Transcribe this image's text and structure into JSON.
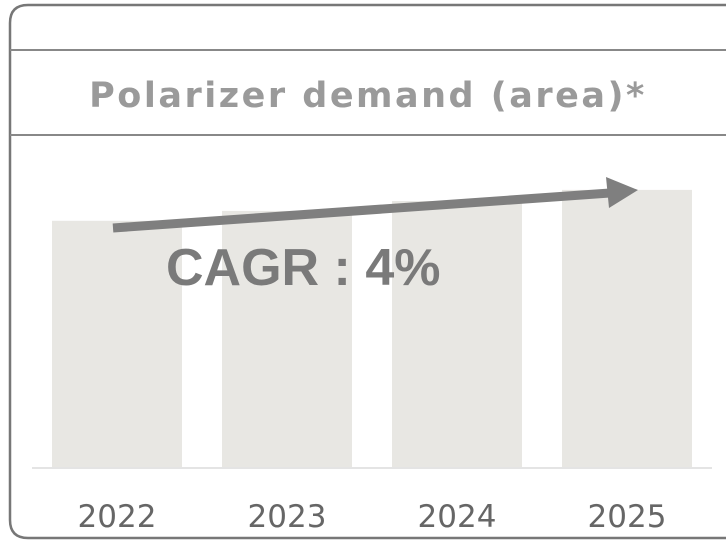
{
  "chart_data": {
    "type": "bar",
    "title": "Polarizer demand (area)*",
    "annotation": "CAGR : 4%",
    "categories": [
      "2022",
      "2023",
      "2024",
      "2025"
    ],
    "values": [
      100,
      104,
      108,
      112.5
    ],
    "color": "#e8e7e3",
    "ylim": [
      0,
      125
    ]
  }
}
